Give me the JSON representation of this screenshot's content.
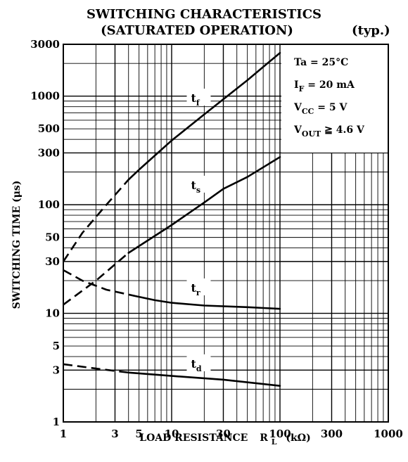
{
  "chart_data": {
    "type": "line",
    "title_line1": "SWITCHING CHARACTERISTICS",
    "title_line2": "(SATURATED OPERATION)",
    "title_note": "(typ.)",
    "xlabel": {
      "main": "LOAD RESISTANCE",
      "sym": "R",
      "sub": "L",
      "unit": "(kΩ)"
    },
    "ylabel": "SWITCHING TIME  (μs)",
    "x_scale": "log",
    "y_scale": "log",
    "xlim": [
      1,
      1000
    ],
    "ylim": [
      1,
      3000
    ],
    "x_ticks": [
      1,
      3,
      5,
      10,
      30,
      100,
      300,
      1000
    ],
    "x_tick_labels": [
      "1",
      "3",
      "5",
      "10",
      "30",
      "100",
      "300",
      "1000"
    ],
    "y_ticks": [
      1,
      3,
      5,
      10,
      30,
      50,
      100,
      300,
      500,
      1000,
      3000
    ],
    "y_tick_labels": [
      "1",
      "3",
      "5",
      "10",
      "30",
      "50",
      "100",
      "300",
      "500",
      "1000",
      "3000"
    ],
    "grid": true,
    "conditions": [
      {
        "main": "Ta = 25°C",
        "sub": "",
        "rest": ""
      },
      {
        "main": "I",
        "sub": "F",
        "rest": " = 20 mA"
      },
      {
        "main": "V",
        "sub": "CC",
        "rest": " = 5 V"
      },
      {
        "main": "V",
        "sub": "OUT",
        "rest": " ≧ 4.6 V"
      }
    ],
    "series": [
      {
        "name": "t",
        "sub": "f",
        "label_at": [
          17,
          950
        ],
        "dashed": {
          "x": [
            1,
            1.5,
            2.5,
            4
          ],
          "y": [
            30,
            55,
            100,
            170
          ]
        },
        "solid": {
          "x": [
            4,
            5,
            10,
            20,
            50,
            100
          ],
          "y": [
            170,
            210,
            390,
            680,
            1400,
            2500
          ]
        }
      },
      {
        "name": "t",
        "sub": "s",
        "label_at": [
          17,
          150
        ],
        "dashed": {
          "x": [
            1,
            2,
            4
          ],
          "y": [
            12,
            20,
            36
          ]
        },
        "solid": {
          "x": [
            4,
            10,
            20,
            30,
            50,
            100
          ],
          "y": [
            36,
            65,
            105,
            140,
            180,
            275
          ]
        }
      },
      {
        "name": "t",
        "sub": "r",
        "label_at": [
          17,
          17
        ],
        "dashed": {
          "x": [
            1,
            1.5,
            2.5,
            4.5
          ],
          "y": [
            25,
            20,
            16.5,
            14.5
          ]
        },
        "solid": {
          "x": [
            4.5,
            7,
            10,
            20,
            50,
            100
          ],
          "y": [
            14.5,
            13.2,
            12.5,
            11.8,
            11.4,
            11
          ]
        }
      },
      {
        "name": "t",
        "sub": "d",
        "label_at": [
          17,
          3.4
        ],
        "dashed": {
          "x": [
            1,
            2,
            4
          ],
          "y": [
            3.4,
            3.1,
            2.85
          ]
        },
        "solid": {
          "x": [
            4,
            10,
            30,
            100
          ],
          "y": [
            2.85,
            2.65,
            2.45,
            2.15
          ]
        }
      }
    ]
  }
}
